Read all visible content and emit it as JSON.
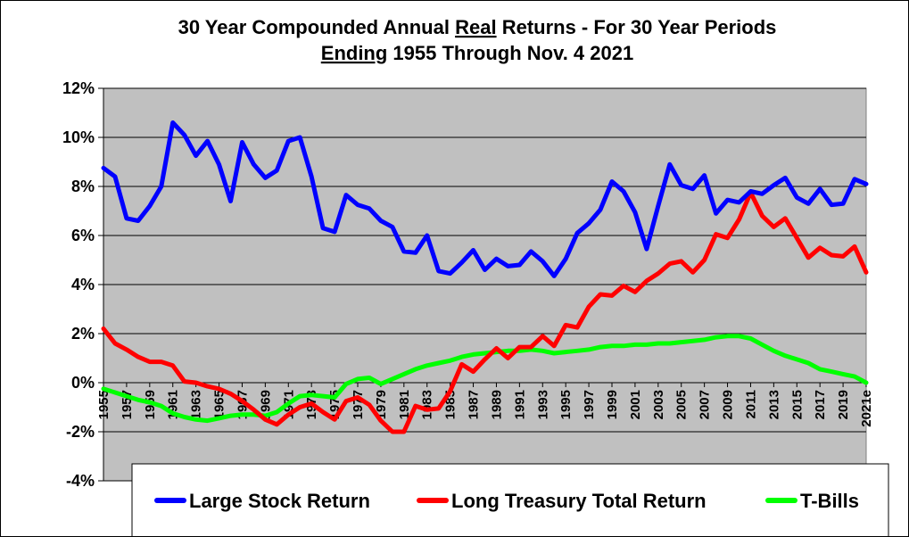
{
  "chart_data": {
    "type": "line",
    "title_line1_parts": [
      "30 Year Compounded Annual ",
      "Real",
      " Returns - For 30 Year Periods"
    ],
    "title_line2_parts": [
      "Ending",
      " 1955 Through Nov. 4 2021"
    ],
    "xlabel": "",
    "ylabel": "",
    "ylim": [
      -4,
      12
    ],
    "yticks": [
      -4,
      -2,
      0,
      2,
      4,
      6,
      8,
      10,
      12
    ],
    "ytick_labels": [
      "-4%",
      "-2%",
      "0%",
      "2%",
      "4%",
      "6%",
      "8%",
      "10%",
      "12%"
    ],
    "grid": "horizontal",
    "background": "#c0c0c0",
    "legend_position": "bottom",
    "x": [
      "1955",
      "1956",
      "1957",
      "1958",
      "1959",
      "1960",
      "1961",
      "1962",
      "1963",
      "1964",
      "1965",
      "1966",
      "1967",
      "1968",
      "1969",
      "1970",
      "1971",
      "1972",
      "1973",
      "1974",
      "1975",
      "1976",
      "1977",
      "1978",
      "1979",
      "1980",
      "1981",
      "1982",
      "1983",
      "1984",
      "1985",
      "1986",
      "1987",
      "1988",
      "1989",
      "1990",
      "1991",
      "1992",
      "1993",
      "1994",
      "1995",
      "1996",
      "1997",
      "1998",
      "1999",
      "2000",
      "2001",
      "2002",
      "2003",
      "2004",
      "2005",
      "2006",
      "2007",
      "2008",
      "2009",
      "2010",
      "2011",
      "2012",
      "2013",
      "2014",
      "2015",
      "2016",
      "2017",
      "2018",
      "2019",
      "2020",
      "2021e"
    ],
    "xtick_labels": [
      "1955",
      "1957",
      "1959",
      "1961",
      "1963",
      "1965",
      "1967",
      "1969",
      "1971",
      "1973",
      "1975",
      "1977",
      "1979",
      "1981",
      "1983",
      "1985",
      "1987",
      "1989",
      "1991",
      "1993",
      "1995",
      "1997",
      "1999",
      "2001",
      "2003",
      "2005",
      "2007",
      "2009",
      "2011",
      "2013",
      "2015",
      "2017",
      "2019",
      "2021e"
    ],
    "series": [
      {
        "name": "Large Stock Return",
        "color": "#0000ff",
        "values": [
          8.75,
          8.4,
          6.7,
          6.6,
          7.2,
          8.0,
          10.6,
          10.1,
          9.25,
          9.85,
          8.9,
          7.4,
          9.8,
          8.9,
          8.35,
          8.65,
          9.85,
          10.0,
          8.4,
          6.3,
          6.15,
          7.65,
          7.25,
          7.1,
          6.6,
          6.35,
          5.35,
          5.3,
          6.0,
          4.55,
          4.45,
          4.9,
          5.4,
          4.6,
          5.05,
          4.75,
          4.8,
          5.35,
          4.95,
          4.35,
          5.05,
          6.1,
          6.5,
          7.05,
          8.2,
          7.8,
          6.95,
          5.45,
          7.2,
          8.9,
          8.05,
          7.9,
          8.45,
          6.9,
          7.45,
          7.35,
          7.8,
          7.7,
          8.05,
          8.35,
          7.55,
          7.3,
          7.9,
          7.25,
          7.3,
          8.3,
          8.1
        ]
      },
      {
        "name": "Long Treasury Total Return",
        "color": "#ff0000",
        "values": [
          2.2,
          1.6,
          1.35,
          1.05,
          0.85,
          0.85,
          0.7,
          0.05,
          0.0,
          -0.15,
          -0.25,
          -0.45,
          -0.75,
          -1.1,
          -1.5,
          -1.7,
          -1.3,
          -1.0,
          -0.85,
          -1.2,
          -1.5,
          -0.75,
          -0.6,
          -0.9,
          -1.55,
          -2.0,
          -2.0,
          -0.95,
          -1.1,
          -1.05,
          -0.35,
          0.75,
          0.45,
          0.95,
          1.4,
          1.0,
          1.45,
          1.45,
          1.9,
          1.5,
          2.35,
          2.25,
          3.1,
          3.6,
          3.55,
          3.95,
          3.7,
          4.15,
          4.45,
          4.85,
          4.95,
          4.5,
          5.0,
          6.05,
          5.9,
          6.65,
          7.75,
          6.8,
          6.35,
          6.7,
          5.9,
          5.1,
          5.5,
          5.2,
          5.15,
          5.55,
          4.5
        ]
      },
      {
        "name": "T-Bills",
        "color": "#00ff00",
        "values": [
          -0.25,
          -0.4,
          -0.55,
          -0.7,
          -0.8,
          -0.95,
          -1.25,
          -1.4,
          -1.5,
          -1.55,
          -1.45,
          -1.35,
          -1.3,
          -1.3,
          -1.35,
          -1.2,
          -0.85,
          -0.55,
          -0.5,
          -0.55,
          -0.6,
          -0.05,
          0.15,
          0.2,
          -0.05,
          0.15,
          0.35,
          0.55,
          0.7,
          0.8,
          0.9,
          1.05,
          1.15,
          1.2,
          1.25,
          1.3,
          1.3,
          1.35,
          1.3,
          1.2,
          1.25,
          1.3,
          1.35,
          1.45,
          1.5,
          1.5,
          1.55,
          1.55,
          1.6,
          1.6,
          1.65,
          1.7,
          1.75,
          1.85,
          1.9,
          1.9,
          1.8,
          1.55,
          1.3,
          1.1,
          0.95,
          0.8,
          0.55,
          0.45,
          0.35,
          0.25,
          0.0
        ]
      }
    ]
  }
}
